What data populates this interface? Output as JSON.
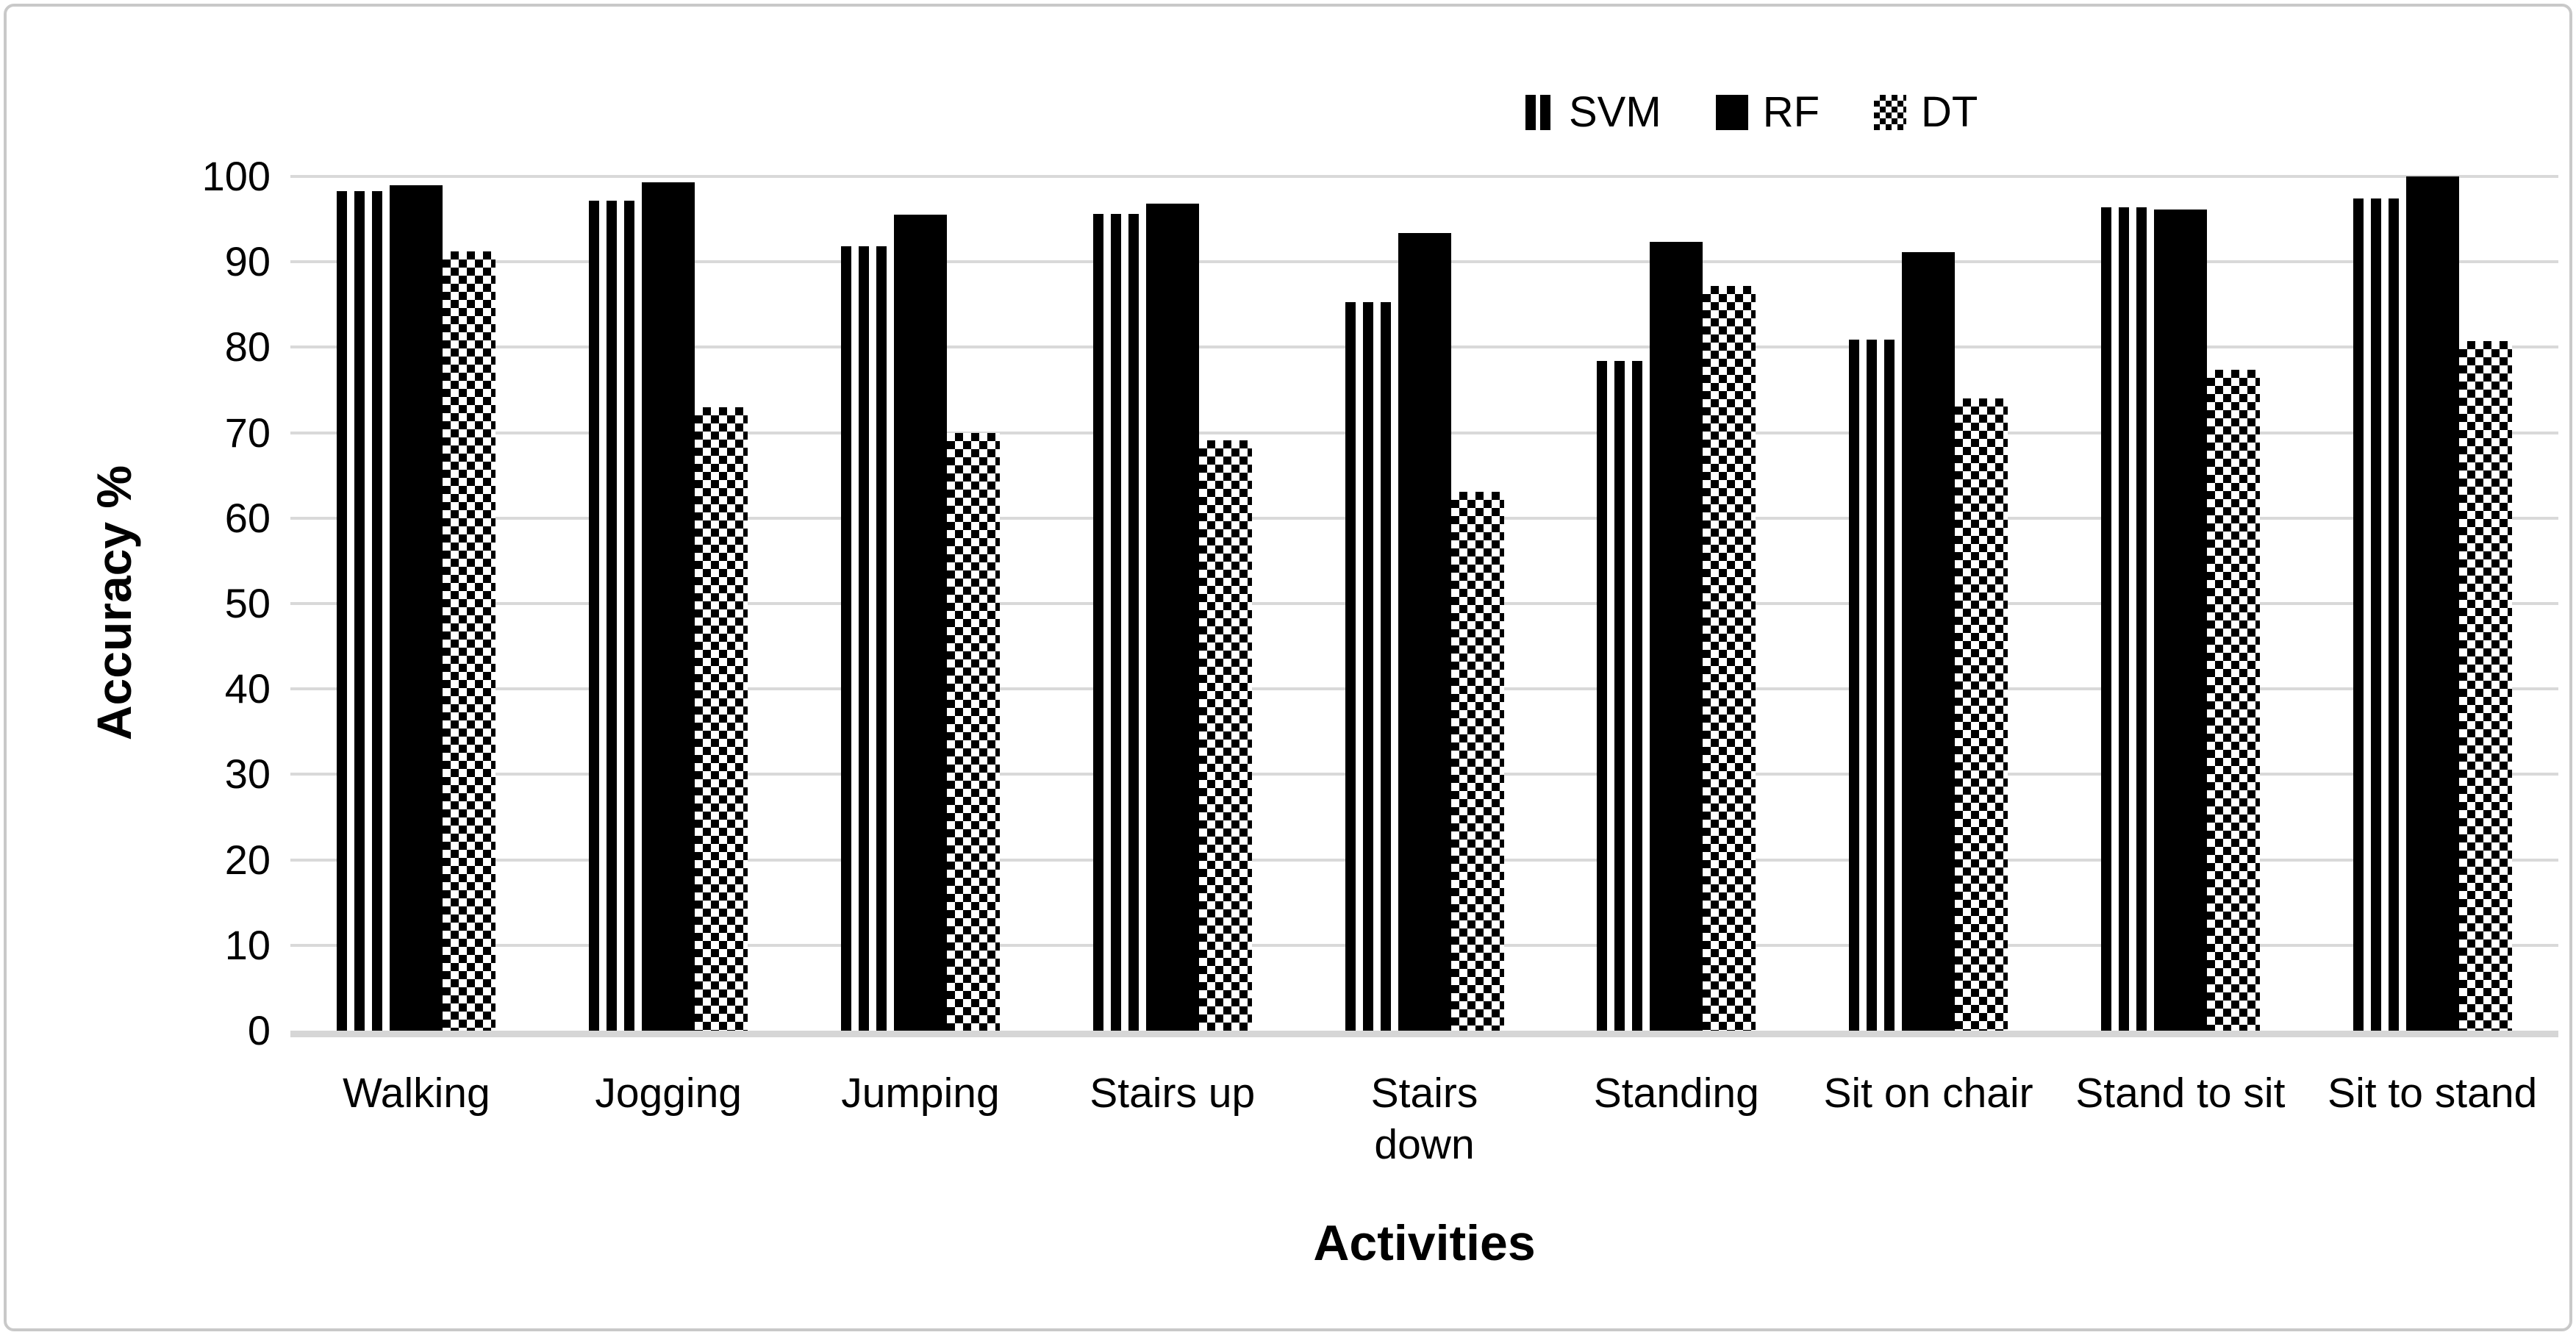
{
  "chart_data": {
    "type": "bar",
    "title": "",
    "categories": [
      "Walking",
      "Jogging",
      "Jumping",
      "Stairs up",
      "Stairs\ndown",
      "Standing",
      "Sit on chair",
      "Stand to sit",
      "Sit to stand"
    ],
    "series": [
      {
        "name": "SVM",
        "pattern": "vertical-stripes",
        "values": [
          98.3,
          97.2,
          91.8,
          95.6,
          85.3,
          78.4,
          80.9,
          96.4,
          97.4
        ]
      },
      {
        "name": "RF",
        "pattern": "solid",
        "values": [
          99.0,
          99.3,
          95.5,
          96.8,
          93.4,
          92.3,
          91.1,
          96.1,
          100.0
        ]
      },
      {
        "name": "DT",
        "pattern": "checker",
        "values": [
          91.2,
          73.0,
          70.0,
          69.1,
          63.1,
          87.2,
          74.0,
          77.4,
          80.7
        ]
      }
    ],
    "xlabel": "Activities",
    "ylabel": "Accuracy %",
    "ylim": [
      0,
      100
    ],
    "yticks": [
      0,
      10,
      20,
      30,
      40,
      50,
      60,
      70,
      80,
      90,
      100
    ],
    "grid": true,
    "legend_position": "top-center"
  },
  "colors": {
    "bar_fill": "#000000",
    "gridline": "#d9d9d9",
    "baseline": "#d6d6d6",
    "text": "#000000",
    "frame_border": "#c9c9c9",
    "background": "#ffffff"
  }
}
